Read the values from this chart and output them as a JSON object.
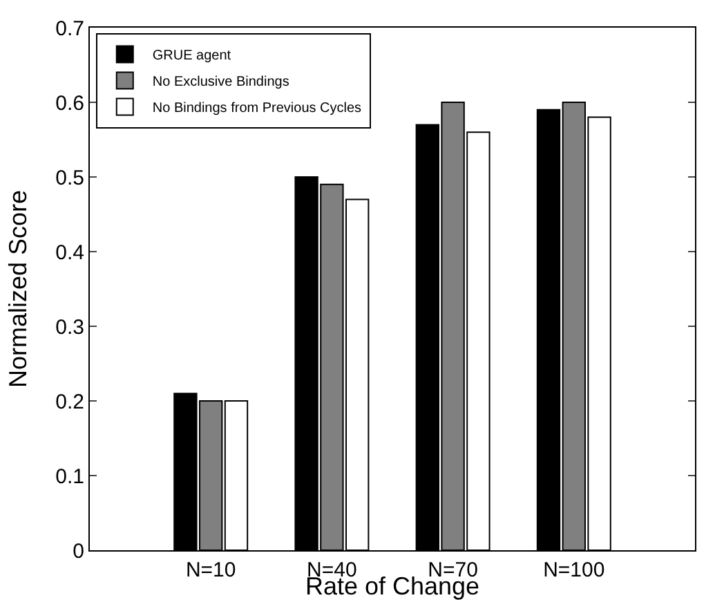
{
  "chart_data": {
    "type": "bar",
    "xlabel": "Rate of Change",
    "ylabel": "Normalized Score",
    "categories": [
      "N=10",
      "N=40",
      "N=70",
      "N=100"
    ],
    "series": [
      {
        "name": "GRUE agent",
        "color": "#000000",
        "values": [
          0.21,
          0.5,
          0.57,
          0.59
        ]
      },
      {
        "name": "No Exclusive Bindings",
        "color": "#808080",
        "values": [
          0.2,
          0.49,
          0.6,
          0.6
        ]
      },
      {
        "name": "No Bindings from Previous Cycles",
        "color": "#ffffff",
        "values": [
          0.2,
          0.47,
          0.56,
          0.58
        ]
      }
    ],
    "ylim": [
      0,
      0.7
    ],
    "yticks": [
      0,
      0.1,
      0.2,
      0.3,
      0.4,
      0.5,
      0.6,
      0.7
    ],
    "grid": false,
    "legend": "top left"
  }
}
